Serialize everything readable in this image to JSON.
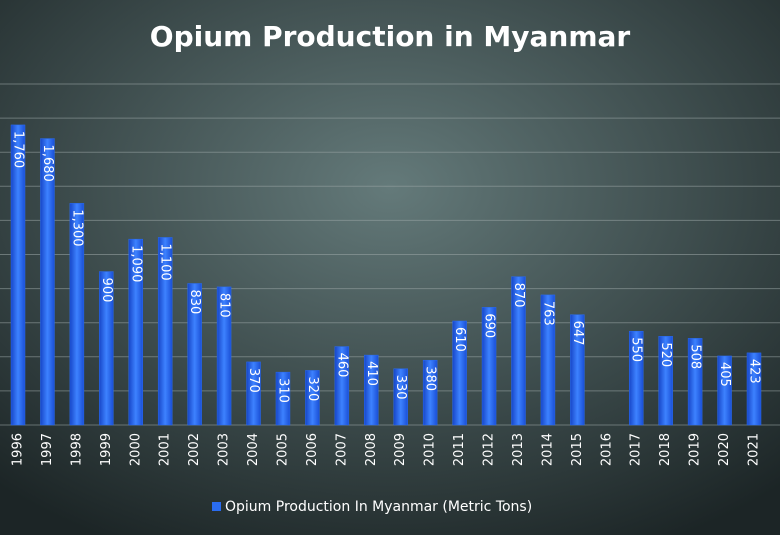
{
  "chart_data": {
    "type": "bar",
    "title": "Opium Production in Myanmar",
    "categories": [
      "1996",
      "1997",
      "1998",
      "1999",
      "2000",
      "2001",
      "2002",
      "2003",
      "2004",
      "2005",
      "2006",
      "2007",
      "2008",
      "2009",
      "2010",
      "2011",
      "2012",
      "2013",
      "2014",
      "2015",
      "2016",
      "2017",
      "2018",
      "2019",
      "2020",
      "2021"
    ],
    "series": [
      {
        "name": "Opium Production In Myanmar (Metric Tons)",
        "color": "#2a6cf0",
        "values": [
          1760,
          1680,
          1300,
          900,
          1090,
          1100,
          830,
          810,
          370,
          310,
          320,
          460,
          410,
          330,
          380,
          610,
          690,
          870,
          763,
          647,
          null,
          550,
          520,
          508,
          405,
          423
        ],
        "value_labels": [
          "1,760",
          "1,680",
          "1,300",
          "900",
          "1,090",
          "1,100",
          "830",
          "810",
          "370",
          "310",
          "320",
          "460",
          "410",
          "330",
          "380",
          "610",
          "690",
          "870",
          "763",
          "647",
          null,
          "550",
          "520",
          "508",
          "405",
          "423"
        ]
      }
    ],
    "ylim": [
      0,
      2000
    ],
    "yticks": [
      0,
      200,
      400,
      600,
      800,
      1000,
      1200,
      1400,
      1600,
      1800,
      2000
    ],
    "grid": true
  }
}
